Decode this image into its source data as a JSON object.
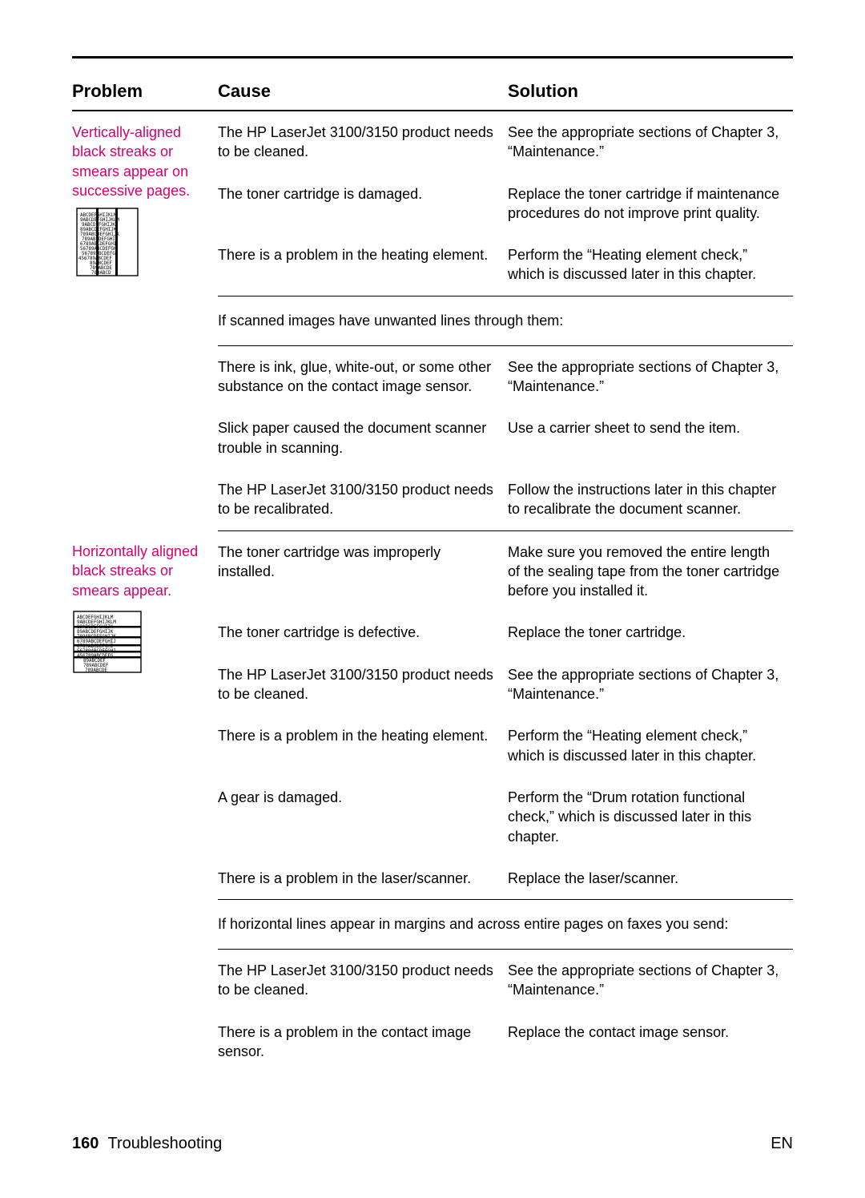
{
  "colors": {
    "accent": "#d6006c",
    "text": "#000000",
    "rule": "#000000"
  },
  "headers": {
    "problem": "Problem",
    "cause": "Cause",
    "solution": "Solution"
  },
  "sections": [
    {
      "problem": "Vertically-aligned black streaks or smears appear on successive pages.",
      "rows": [
        {
          "cause": "The HP LaserJet 3100/3150 product needs to be cleaned.",
          "solution": "See the appropriate sections of Chapter 3, “Maintenance.”"
        },
        {
          "cause": "The toner cartridge is damaged.",
          "solution": "Replace the toner cartridge if maintenance procedures do not improve print quality."
        },
        {
          "cause": "There is a problem in the heating element.",
          "solution": "Perform the “Heating element check,” which is discussed later in this chapter."
        }
      ],
      "note": "If scanned images have unwanted lines through them:",
      "rows2": [
        {
          "cause": "There is ink, glue, white-out, or some other substance on the contact image sensor.",
          "solution": "See the appropriate sections of Chapter 3, “Maintenance.”"
        },
        {
          "cause": "Slick paper caused the document scanner trouble in scanning.",
          "solution": "Use a carrier sheet to send the item."
        },
        {
          "cause": "The HP LaserJet 3100/3150 product needs to be recalibrated.",
          "solution": "Follow the instructions later in this chapter to recalibrate the document scanner."
        }
      ]
    },
    {
      "problem": "Horizontally aligned black streaks or smears appear.",
      "rows": [
        {
          "cause": "The toner cartridge was improperly installed.",
          "solution": "Make sure you removed the entire length of the sealing tape from the toner cartridge before you installed it."
        },
        {
          "cause": "The toner cartridge is defective.",
          "solution": "Replace the toner cartridge."
        },
        {
          "cause": "The HP LaserJet 3100/3150 product needs to be cleaned.",
          "solution": "See the appropriate sections of Chapter 3, “Maintenance.”"
        },
        {
          "cause": "There is a problem in the heating element.",
          "solution": "Perform the “Heating element check,” which is discussed later in this chapter."
        },
        {
          "cause": "A gear is damaged.",
          "solution": "Perform the “Drum rotation functional check,” which is discussed later in this chapter."
        },
        {
          "cause": "There is a problem in the laser/scanner.",
          "solution": "Replace the laser/scanner."
        }
      ],
      "note": "If horizontal lines appear in margins and across entire pages on faxes you send:",
      "rows2": [
        {
          "cause": "The HP LaserJet 3100/3150 product needs to be cleaned.",
          "solution": "See the appropriate sections of Chapter 3, “Maintenance.”"
        },
        {
          "cause": "There is a problem in the contact image sensor.",
          "solution": "Replace the contact image sensor."
        }
      ]
    }
  ],
  "footer": {
    "page": "160",
    "title": "Troubleshooting",
    "lang": "EN"
  },
  "icon_vertical_svg": "<svg viewBox='0 0 88 88' xmlns='http://www.w3.org/2000/svg'><rect x='6' y='2' width='76' height='84' fill='#fff' stroke='#000' stroke-width='1.4'/><g font-family='monospace' font-size='5.8' fill='#000'><text x='10' y='12'>ABCDEFGHIJKLM</text><text x='10' y='18'>9ABCDEFGHIJKLM</text><text x='12' y='24'>9ABCDEFGHIJK</text><text x='10' y='30'>89ABCDEFGHIJK</text><text x='10' y='36'>789ABCDEFGHIJK</text><text x='12' y='42'>789ABCDEFGHIJ</text><text x='10' y='48'>6789ABCDEFGHI</text><text x='10' y='54'>56789ABCDEFGH</text><text x='12' y='60'>56789ABCDEFG</text><text x='8'  y='66'>456789ABCDEF</text><text x='22' y='72'>89ABCDEF</text><text x='22' y='78'>789ABCDE</text><text x='24' y='84'>789ABCD</text></g><rect x='30' y='2' width='3' height='84' fill='#000'/><rect x='54' y='2' width='3' height='84' fill='#000'/></svg>",
  "icon_horizontal_svg": "<svg viewBox='0 0 88 88' xmlns='http://www.w3.org/2000/svg'><rect x='2' y='6' width='84' height='76' fill='#fff' stroke='#000' stroke-width='1.4'/><g font-family='monospace' font-size='5.8' fill='#000'><text x='6' y='15'>ABCDEFGHIJKLM</text><text x='6' y='21'>9ABCDEFGHIJKLM</text><text x='6' y='27'>89ABCDEFGHIJK</text><text x='6' y='33'>89ABCDEFGHIJK</text><text x='6' y='39'>789ABCDEFGHIJK</text><text x='6' y='45'>6789ABCDEFGHIJ</text><text x='6' y='51'>6789ABCDEFGHI</text><text x='6' y='57'>56789ABCDEFGHI</text><text x='6' y='63'>456789ABCDEFG</text><text x='14' y='69'>89ABCDEF</text><text x='14' y='75'>789ABCDEF</text><text x='16' y='81'>789ABCDE</text></g><rect x='2' y='24' width='84' height='2.5' fill='#000'/><rect x='2' y='37' width='84' height='2.5' fill='#000'/><rect x='2' y='47' width='84' height='2.5' fill='#000'/><rect x='2' y='55' width='84' height='2.5' fill='#000'/><rect x='2' y='62' width='84' height='2.5' fill='#000'/></svg>"
}
